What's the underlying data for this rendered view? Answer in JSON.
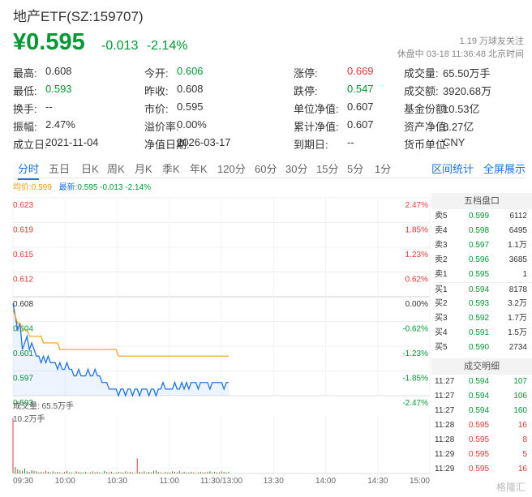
{
  "header": {
    "title": "地产ETF(SZ:159707)",
    "price": "¥0.595",
    "change": "-0.013",
    "change_pct": "-2.14%",
    "followers": "1.19 万球友关注",
    "status": "休盘中 03-18 11:36:48 北京时间"
  },
  "stats": [
    [
      {
        "label": "最高:",
        "value": "0.608",
        "tone": ""
      },
      {
        "label": "今开:",
        "value": "0.606",
        "tone": "down"
      },
      {
        "label": "涨停:",
        "value": "0.669",
        "tone": "up"
      },
      {
        "label": "成交量:",
        "value": "65.50万手",
        "tone": ""
      }
    ],
    [
      {
        "label": "最低:",
        "value": "0.593",
        "tone": "down"
      },
      {
        "label": "昨收:",
        "value": "0.608",
        "tone": ""
      },
      {
        "label": "跌停:",
        "value": "0.547",
        "tone": "down"
      },
      {
        "label": "成交额:",
        "value": "3920.68万",
        "tone": ""
      }
    ],
    [
      {
        "label": "换手:",
        "value": "--",
        "tone": ""
      },
      {
        "label": "市价:",
        "value": "0.595",
        "tone": ""
      },
      {
        "label": "单位净值:",
        "value": "0.607",
        "tone": ""
      },
      {
        "label": "基金份额:",
        "value": "10.53亿",
        "tone": ""
      }
    ],
    [
      {
        "label": "振幅:",
        "value": "2.47%",
        "tone": ""
      },
      {
        "label": "溢价率:",
        "value": "0.00%",
        "tone": ""
      },
      {
        "label": "累计净值:",
        "value": "0.607",
        "tone": ""
      },
      {
        "label": "资产净值:",
        "value": "6.27亿",
        "tone": ""
      }
    ],
    [
      {
        "label": "成立日:",
        "value": "2021-11-04",
        "tone": ""
      },
      {
        "label": "净值日期:",
        "value": "2026-03-17",
        "tone": ""
      },
      {
        "label": "到期日:",
        "value": "--",
        "tone": ""
      },
      {
        "label": "货币单位:",
        "value": "CNY",
        "tone": ""
      }
    ]
  ],
  "tabs": [
    "分时",
    "五日",
    "日K",
    "周K",
    "月K",
    "季K",
    "年K",
    "120分",
    "60分",
    "30分",
    "15分",
    "5分",
    "1分"
  ],
  "active_tab": 0,
  "right_links": [
    "区间统计",
    "全屏展示"
  ],
  "legend": {
    "avg_label": "均价:",
    "avg_value": "0.599",
    "last_label": "最新:",
    "last_value": "0.595 -0.013 -2.14%"
  },
  "chart_data": {
    "type": "line",
    "price_axis": [
      "0.623",
      "0.619",
      "0.615",
      "0.612",
      "0.608",
      "0.604",
      "0.601",
      "0.597",
      "0.593"
    ],
    "pct_axis": [
      "2.47%",
      "1.85%",
      "1.23%",
      "0.62%",
      "0.00%",
      "-0.62%",
      "-1.23%",
      "-1.85%",
      "-2.47%"
    ],
    "ylim": [
      0.593,
      0.623
    ],
    "prev_close": 0.608,
    "x_labels": [
      "09:30",
      "10:00",
      "10:30",
      "11:00",
      "11:30/13:00",
      "13:30",
      "14:00",
      "14:30",
      "15:00"
    ],
    "series": [
      {
        "name": "最新",
        "values": [
          0.607,
          0.605,
          0.603,
          0.604,
          0.6,
          0.601,
          0.602,
          0.6,
          0.601,
          0.6,
          0.599,
          0.599,
          0.598,
          0.599,
          0.598,
          0.599,
          0.598,
          0.598,
          0.598,
          0.597,
          0.598,
          0.597,
          0.597,
          0.598,
          0.597,
          0.597,
          0.596,
          0.596,
          0.597,
          0.596,
          0.596,
          0.596,
          0.597,
          0.596,
          0.596,
          0.597,
          0.596,
          0.596,
          0.595,
          0.595,
          0.595,
          0.594,
          0.594,
          0.594,
          0.594,
          0.593,
          0.594,
          0.594,
          0.593,
          0.594,
          0.594,
          0.593,
          0.594,
          0.594,
          0.593,
          0.594,
          0.594,
          0.594,
          0.593,
          0.594,
          0.594,
          0.593,
          0.594,
          0.594,
          0.595,
          0.594,
          0.594,
          0.594,
          0.594,
          0.595,
          0.594,
          0.594,
          0.595,
          0.594,
          0.595,
          0.594,
          0.595,
          0.595,
          0.595,
          0.594,
          0.595,
          0.595,
          0.595,
          0.595,
          0.594,
          0.595,
          0.595,
          0.595,
          0.595,
          0.595,
          0.594,
          0.595,
          0.595
        ]
      },
      {
        "name": "均价",
        "values": [
          0.606,
          0.605,
          0.604,
          0.604,
          0.603,
          0.603,
          0.603,
          0.602,
          0.602,
          0.602,
          0.602,
          0.602,
          0.602,
          0.601,
          0.601,
          0.601,
          0.601,
          0.601,
          0.601,
          0.601,
          0.6,
          0.6,
          0.6,
          0.6,
          0.6,
          0.6,
          0.6,
          0.6,
          0.6,
          0.6,
          0.6,
          0.6,
          0.6,
          0.6,
          0.6,
          0.6,
          0.6,
          0.6,
          0.6,
          0.6,
          0.6,
          0.6,
          0.6,
          0.6,
          0.6,
          0.599,
          0.599,
          0.599,
          0.599,
          0.599,
          0.599,
          0.599,
          0.599,
          0.599,
          0.599,
          0.599,
          0.599,
          0.599,
          0.599,
          0.599,
          0.599,
          0.599,
          0.599,
          0.599,
          0.599,
          0.599,
          0.599,
          0.599,
          0.599,
          0.599,
          0.599,
          0.599,
          0.599,
          0.599,
          0.599,
          0.599,
          0.599,
          0.599,
          0.599,
          0.599,
          0.599,
          0.599,
          0.599,
          0.599,
          0.599,
          0.599,
          0.599,
          0.599,
          0.599,
          0.599,
          0.599,
          0.599,
          0.599
        ]
      }
    ],
    "volume": {
      "label": "成交量: 65.5万手",
      "max_label": "10.2万手",
      "values": [
        10.2,
        1.2,
        0.8,
        0.6,
        0.5,
        0.9,
        0.4,
        0.3,
        0.6,
        0.5,
        0.4,
        0.2,
        0.3,
        0.2,
        0.5,
        0.3,
        0.2,
        0.4,
        0.2,
        0.3,
        0.2,
        0.1,
        0.3,
        0.5,
        0.2,
        0.2,
        0.1,
        0.4,
        0.3,
        0.2,
        0.2,
        0.3,
        0.1,
        0.2,
        0.4,
        0.2,
        0.3,
        0.2,
        0.1,
        0.5,
        0.3,
        0.2,
        0.3,
        0.1,
        0.2,
        0.3,
        0.2,
        0.2,
        0.4,
        0.2,
        0.3,
        0.2,
        0.1,
        2.8,
        0.3,
        0.2,
        0.4,
        0.2,
        0.3,
        0.2,
        0.5,
        0.6,
        0.3,
        0.2,
        0.1,
        0.3,
        0.2,
        0.2,
        0.4,
        0.3,
        0.2,
        0.5,
        0.2,
        0.3,
        0.2,
        0.2,
        0.3,
        0.2,
        0.1,
        0.2,
        0.3,
        0.2,
        0.2,
        0.3,
        0.4,
        0.2,
        0.3,
        0.2,
        0.2,
        0.4,
        0.3,
        0.2,
        0.3
      ],
      "colors": [
        "up",
        "down",
        "up",
        "down",
        "up",
        "down",
        "down",
        "up",
        "down",
        "up",
        "down",
        "down",
        "up",
        "down",
        "up",
        "down",
        "up",
        "down",
        "up",
        "down",
        "up",
        "down",
        "up",
        "down",
        "up",
        "down",
        "up",
        "down",
        "up",
        "down",
        "up",
        "down",
        "up",
        "down",
        "up",
        "down",
        "up",
        "down",
        "up",
        "down",
        "up",
        "down",
        "up",
        "down",
        "up",
        "down",
        "up",
        "down",
        "up",
        "down",
        "up",
        "down",
        "up",
        "up",
        "down",
        "up",
        "down",
        "up",
        "down",
        "up",
        "down",
        "up",
        "down",
        "up",
        "down",
        "up",
        "down",
        "up",
        "down",
        "up",
        "down",
        "up",
        "down",
        "up",
        "down",
        "up",
        "down",
        "up",
        "down",
        "up",
        "down",
        "up",
        "down",
        "up",
        "down",
        "up",
        "down",
        "up",
        "down",
        "up",
        "down",
        "up",
        "down"
      ]
    }
  },
  "order_book": {
    "title": "五档盘口",
    "rows": [
      {
        "label": "卖5",
        "price": "0.599",
        "vol": "6112",
        "tone": "down"
      },
      {
        "label": "卖4",
        "price": "0.598",
        "vol": "6495",
        "tone": "down"
      },
      {
        "label": "卖3",
        "price": "0.597",
        "vol": "1.1万",
        "tone": "down"
      },
      {
        "label": "卖2",
        "price": "0.596",
        "vol": "3685",
        "tone": "down"
      },
      {
        "label": "卖1",
        "price": "0.595",
        "vol": "1",
        "tone": "down"
      },
      {
        "label": "买1",
        "price": "0.594",
        "vol": "8178",
        "tone": "down"
      },
      {
        "label": "买2",
        "price": "0.593",
        "vol": "3.2万",
        "tone": "down"
      },
      {
        "label": "买3",
        "price": "0.592",
        "vol": "1.7万",
        "tone": "down"
      },
      {
        "label": "买4",
        "price": "0.591",
        "vol": "1.5万",
        "tone": "down"
      },
      {
        "label": "买5",
        "price": "0.590",
        "vol": "2734",
        "tone": "down"
      }
    ]
  },
  "trades": {
    "title": "成交明细",
    "rows": [
      {
        "time": "11:27",
        "price": "0.594",
        "vol": "107",
        "tone": "down"
      },
      {
        "time": "11:27",
        "price": "0.594",
        "vol": "106",
        "tone": "down"
      },
      {
        "time": "11:27",
        "price": "0.594",
        "vol": "160",
        "tone": "down"
      },
      {
        "time": "11:28",
        "price": "0.595",
        "vol": "16",
        "tone": "up"
      },
      {
        "time": "11:28",
        "price": "0.595",
        "vol": "8",
        "tone": "up"
      },
      {
        "time": "11:29",
        "price": "0.595",
        "vol": "5",
        "tone": "up"
      },
      {
        "time": "11:29",
        "price": "0.595",
        "vol": "16",
        "tone": "up"
      }
    ]
  },
  "watermark": "格隆汇"
}
